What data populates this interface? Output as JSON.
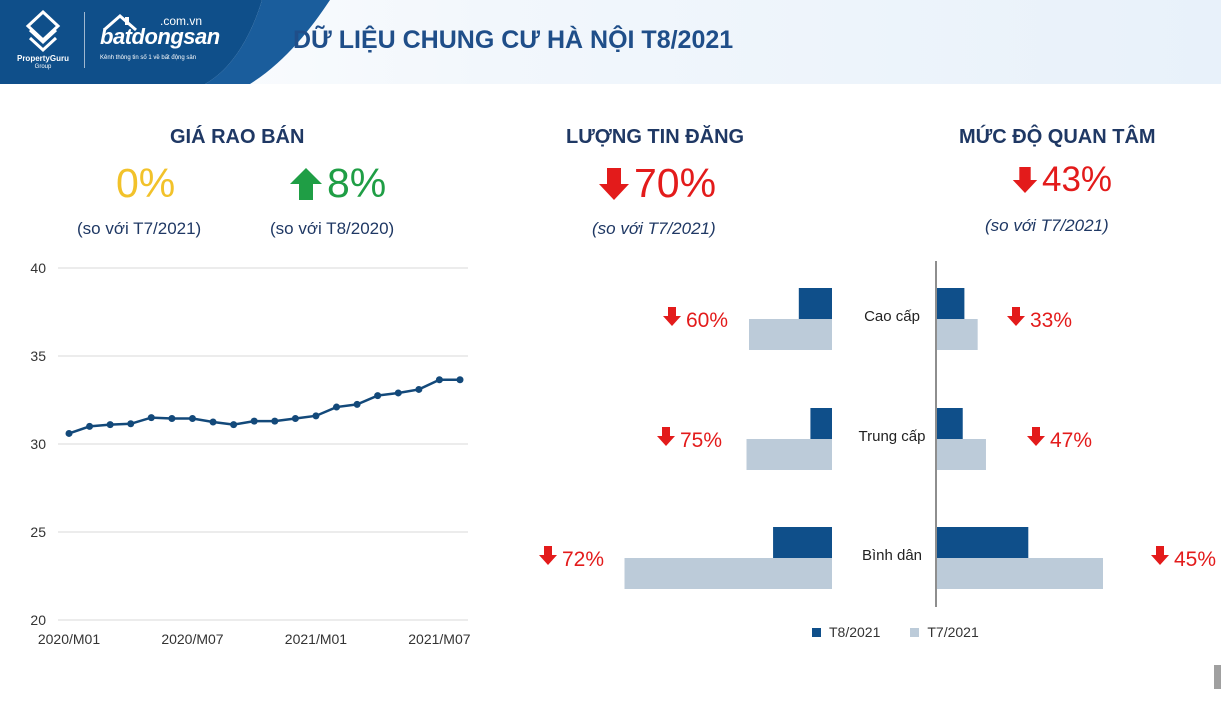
{
  "header": {
    "title": "DỮ LIỆU CHUNG CƯ HÀ NỘI T8/2021",
    "logo_propertyguru": "PropertyGuru",
    "logo_propertyguru_sub": "Group",
    "logo_bds_domain": ".com.vn",
    "logo_bds_name": "batdongsan",
    "logo_bds_tagline": "Kênh thông tin số 1 về bất động sản"
  },
  "kpis": {
    "price": {
      "title": "GIÁ RAO BÁN",
      "mom_value": "0%",
      "mom_note": "(so với T7/2021)",
      "yoy_value": "8%",
      "yoy_note": "(so với T8/2020)"
    },
    "listings": {
      "title": "LƯỢNG TIN ĐĂNG",
      "value": "70%",
      "note": "(so với T7/2021)"
    },
    "interest": {
      "title": "MỨC ĐỘ QUAN TÂM",
      "value": "43%",
      "note": "(so với T7/2021)"
    }
  },
  "colors": {
    "title_blue": "#1f4e89",
    "kpi_title": "#1f3864",
    "neutral": "#f2c22a",
    "up": "#1f9e45",
    "down": "#e31b1b",
    "series_t8": "#0f4f8a",
    "series_t7": "#bccbd9",
    "line": "#13497a"
  },
  "chart_data": [
    {
      "type": "line",
      "x_tick_labels": [
        "2020/M01",
        "2020/M07",
        "2021/M01",
        "2021/M07"
      ],
      "y_tick_labels": [
        "20",
        "25",
        "30",
        "35",
        "40"
      ],
      "ylim": [
        20,
        40
      ],
      "grid": true,
      "series": [
        {
          "values": [
            30.6,
            31.0,
            31.1,
            31.15,
            31.5,
            31.45,
            31.45,
            31.25,
            31.1,
            31.3,
            31.3,
            31.45,
            31.6,
            32.1,
            32.25,
            32.75,
            32.9,
            33.1,
            33.65,
            33.65
          ]
        }
      ]
    },
    {
      "type": "bar",
      "categories": [
        "Cao cấp",
        "Trung cấp",
        "Bình dân"
      ],
      "series": [
        {
          "name": "T8/2021",
          "listings": [
            0.4,
            0.26,
            0.71
          ],
          "interest": [
            0.33,
            0.31,
            1.1
          ]
        },
        {
          "name": "T7/2021",
          "listings": [
            1.0,
            1.03,
            2.5
          ],
          "interest": [
            0.49,
            0.59,
            2.0
          ]
        }
      ],
      "listings_labels": [
        "60%",
        "75%",
        "72%"
      ],
      "interest_labels": [
        "33%",
        "47%",
        "45%"
      ],
      "legend": [
        "T8/2021",
        "T7/2021"
      ]
    }
  ]
}
